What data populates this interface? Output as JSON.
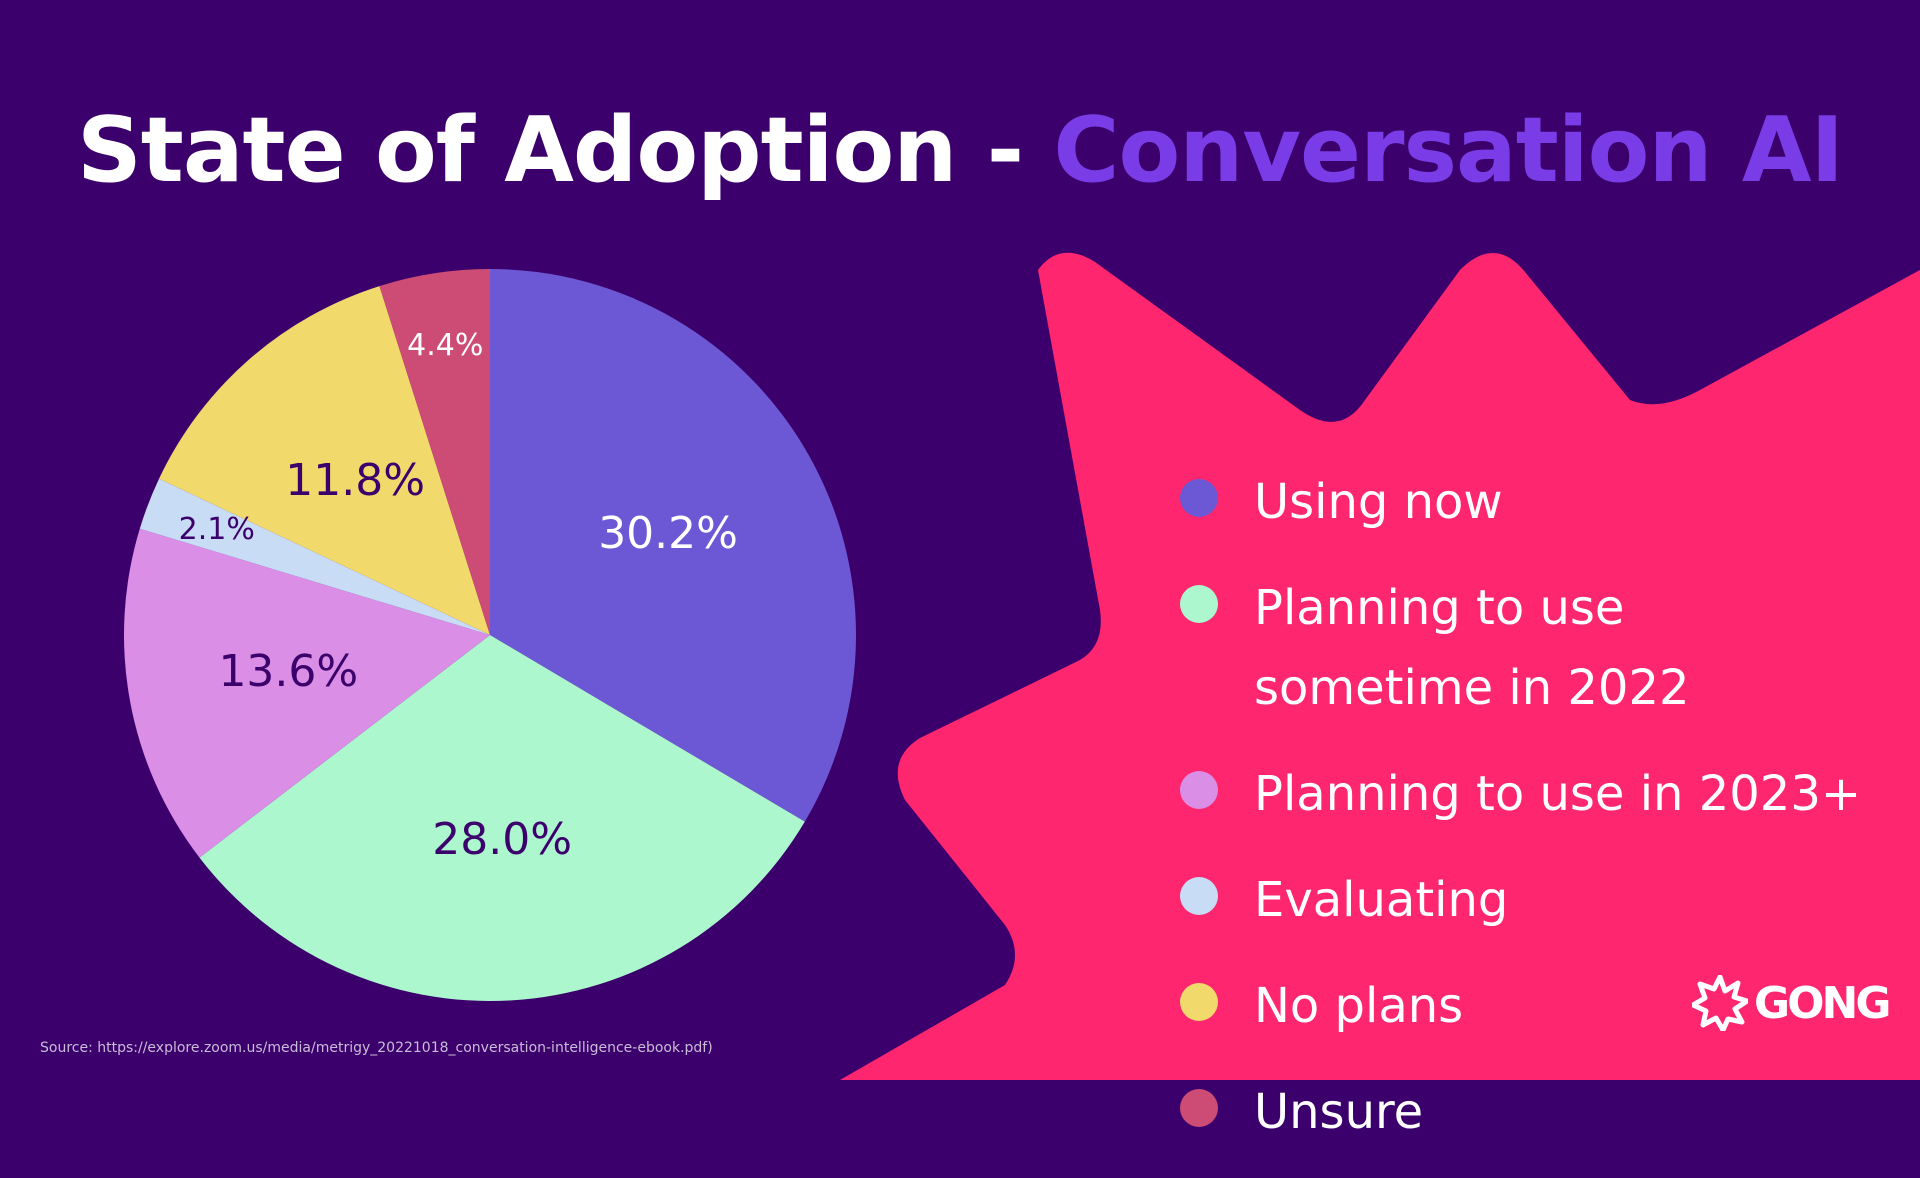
{
  "title": {
    "main": "State of Adoption - ",
    "accent": "Conversation AI"
  },
  "chart_data": {
    "type": "pie",
    "title": "State of Adoption - Conversation AI",
    "categories": [
      "Using now",
      "Planning to use sometime in 2022",
      "Planning to use in 2023+",
      "Evaluating",
      "No plans",
      "Unsure"
    ],
    "values": [
      30.2,
      28.0,
      13.6,
      2.1,
      11.8,
      4.4
    ],
    "data_labels": [
      "30.2%",
      "28.0%",
      "13.6%",
      "2.1%",
      "11.8%",
      "4.4%"
    ],
    "colors": [
      "#6c57d4",
      "#adf7cf",
      "#da8ee6",
      "#c8dcf6",
      "#f2d96c",
      "#cd4c75"
    ],
    "label_colors": [
      "#ffffff",
      "#3b006b",
      "#3b006b",
      "#3b006b",
      "#3b006b",
      "#ffffff"
    ],
    "start_angle": "top",
    "direction": "clockwise",
    "legend_position": "right"
  },
  "legend": {
    "items": [
      {
        "label": "Using now",
        "color": "#6c57d4"
      },
      {
        "label": "Planning to use sometime in 2022",
        "color": "#adf7cf"
      },
      {
        "label": "Planning to use in 2023+",
        "color": "#da8ee6"
      },
      {
        "label": "Evaluating",
        "color": "#c8dcf6"
      },
      {
        "label": "No plans",
        "color": "#f2d96c"
      },
      {
        "label": "Unsure",
        "color": "#cd4c75"
      }
    ]
  },
  "source": "Source: https://explore.zoom.us/media/metrigy_20221018_conversation-intelligence-ebook.pdf)",
  "brand": {
    "name": "GONG",
    "burst_color": "#ff2670",
    "accent_color": "#7a3ce6",
    "background_color": "#3b006b"
  }
}
